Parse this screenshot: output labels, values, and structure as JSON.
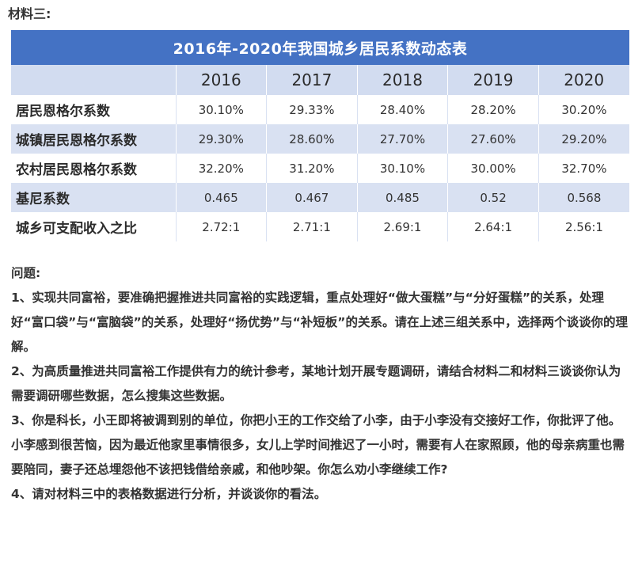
{
  "section_label": "材料三:",
  "table": {
    "title": "2016年-2020年我国城乡居民系数动态表",
    "years": [
      "2016",
      "2017",
      "2018",
      "2019",
      "2020"
    ],
    "rows": [
      {
        "label": "居民恩格尔系数",
        "values": [
          "30.10%",
          "29.33%",
          "28.40%",
          "28.20%",
          "30.20%"
        ]
      },
      {
        "label": "城镇居民恩格尔系数",
        "values": [
          "29.30%",
          "28.60%",
          "27.70%",
          "27.60%",
          "29.20%"
        ]
      },
      {
        "label": "农村居民恩格尔系数",
        "values": [
          "32.20%",
          "31.20%",
          "30.10%",
          "30.00%",
          "32.70%"
        ]
      },
      {
        "label": "基尼系数",
        "values": [
          "0.465",
          "0.467",
          "0.485",
          "0.52",
          "0.568"
        ]
      },
      {
        "label": "城乡可支配收入之比",
        "values": [
          "2.72:1",
          "2.71:1",
          "2.69:1",
          "2.64:1",
          "2.56:1"
        ]
      }
    ]
  },
  "questions": {
    "heading": "问题:",
    "items": [
      "1、实现共同富裕，要准确把握推进共同富裕的实践逻辑，重点处理好“做大蛋糕”与“分好蛋糕”的关系，处理好“富口袋”与“富脑袋”的关系，处理好“扬优势”与“补短板”的关系。请在上述三组关系中，选择两个谈谈你的理解。",
      "2、为高质量推进共同富裕工作提供有力的统计参考，某地计划开展专题调研，请结合材料二和材料三谈谈你认为需要调研哪些数据，怎么搜集这些数据。",
      "3、你是科长，小王即将被调到别的单位，你把小王的工作交给了小李，由于小李没有交接好工作，你批评了他。小李感到很苦恼，因为最近他家里事情很多，女儿上学时间推迟了一小时，需要有人在家照顾，他的母亲病重也需要陪同，妻子还总埋怨他不该把钱借给亲戚，和他吵架。你怎么劝小李继续工作?",
      "4、请对材料三中的表格数据进行分析，并谈谈你的看法。"
    ]
  }
}
